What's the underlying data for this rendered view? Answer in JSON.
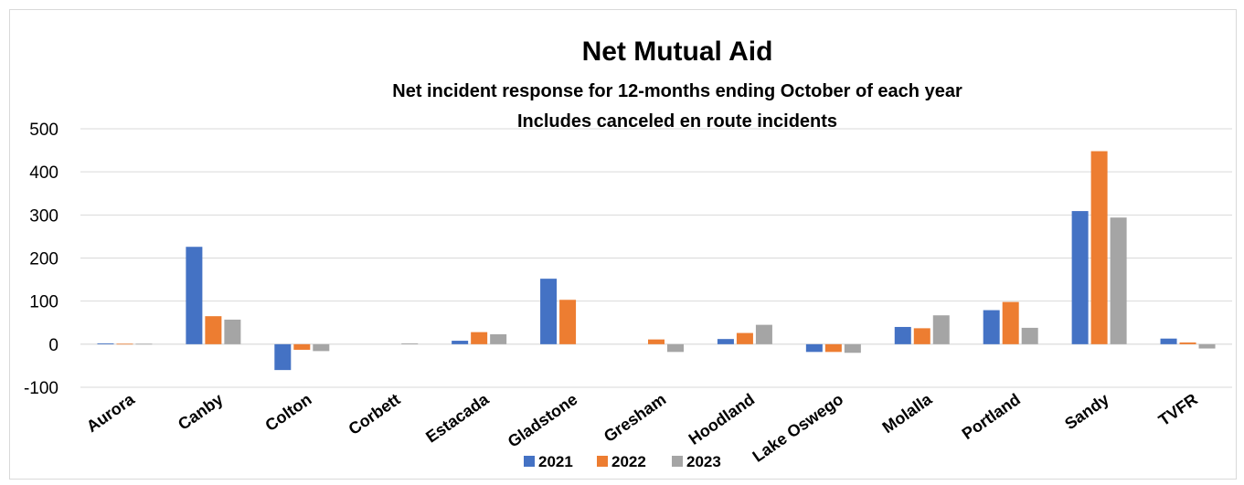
{
  "chart_data": {
    "type": "bar",
    "title": "Net Mutual Aid",
    "subtitle_lines": [
      "Net incident response for 12-months ending October of each year",
      "Includes canceled en route incidents"
    ],
    "categories": [
      "Aurora",
      "Canby",
      "Colton",
      "Corbett",
      "Estacada",
      "Gladstone",
      "Gresham",
      "Hoodland",
      "Lake Oswego",
      "Molalla",
      "Portland",
      "Sandy",
      "TVFR"
    ],
    "series": [
      {
        "name": "2021",
        "color": "#4472c4",
        "values": [
          2,
          226,
          -60,
          0,
          8,
          152,
          0,
          12,
          -18,
          40,
          79,
          309,
          13
        ]
      },
      {
        "name": "2022",
        "color": "#ed7d31",
        "values": [
          1,
          65,
          -13,
          0,
          28,
          103,
          11,
          26,
          -18,
          37,
          98,
          448,
          4
        ]
      },
      {
        "name": "2023",
        "color": "#a5a5a5",
        "values": [
          1,
          57,
          -16,
          2,
          23,
          0,
          -18,
          45,
          -20,
          67,
          38,
          294,
          -10
        ]
      }
    ],
    "yticks": [
      500,
      400,
      300,
      200,
      100,
      0,
      -100
    ],
    "ytick_labels": [
      "500",
      "400",
      "300",
      "200",
      "100",
      "0",
      "-100"
    ],
    "ylim": [
      -100,
      500
    ],
    "grid": true,
    "legend_position": "bottom"
  }
}
